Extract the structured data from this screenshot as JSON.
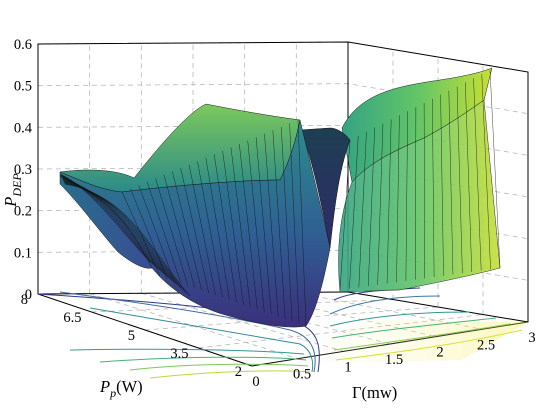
{
  "chart_data": {
    "type": "surface",
    "z_label": {
      "base": "P",
      "sub": "DEP"
    },
    "y_label": {
      "base": "P",
      "sub": "p",
      "unit": "(W)"
    },
    "x_label": "Γ(mw)",
    "z_ticks": [
      "0",
      "0.1",
      "0.2",
      "0.3",
      "0.4",
      "0.5",
      "0.6"
    ],
    "z_tick_values": [
      0,
      0.1,
      0.2,
      0.3,
      0.4,
      0.5,
      0.6
    ],
    "y_ticks": [
      "8",
      "6.5",
      "5",
      "3.5",
      "2"
    ],
    "y_tick_values": [
      8,
      6.5,
      5,
      3.5,
      2
    ],
    "x_ticks": [
      "0",
      "0.5",
      "1",
      "1.5",
      "2",
      "2.5",
      "3"
    ],
    "x_tick_values": [
      0,
      0.5,
      1,
      1.5,
      2,
      2.5,
      3
    ],
    "xlim": [
      0,
      3
    ],
    "ylim": [
      2,
      8
    ],
    "zlim": [
      0,
      0.6
    ],
    "grid": true,
    "projected_contours": true,
    "colormap": [
      "#3b3e8c",
      "#2f6f8e",
      "#21918c",
      "#3bb67a",
      "#8fd14a",
      "#f2e62c"
    ],
    "surface_samples": [
      {
        "gamma": 0.0,
        "Pp": 8,
        "P_DEP": 0.29
      },
      {
        "gamma": 0.9,
        "Pp": 8,
        "P_DEP": 0.05
      },
      {
        "gamma": 1.1,
        "Pp": 8,
        "P_DEP": 0.13
      },
      {
        "gamma": 3.0,
        "Pp": 8,
        "P_DEP": 0.55
      },
      {
        "gamma": 0.0,
        "Pp": 2,
        "P_DEP": 0.29
      },
      {
        "gamma": 0.9,
        "Pp": 2,
        "P_DEP": 0.35
      },
      {
        "gamma": 1.0,
        "Pp": 2,
        "P_DEP": 0.44
      },
      {
        "gamma": 3.0,
        "Pp": 2,
        "P_DEP": 0.55
      }
    ]
  }
}
